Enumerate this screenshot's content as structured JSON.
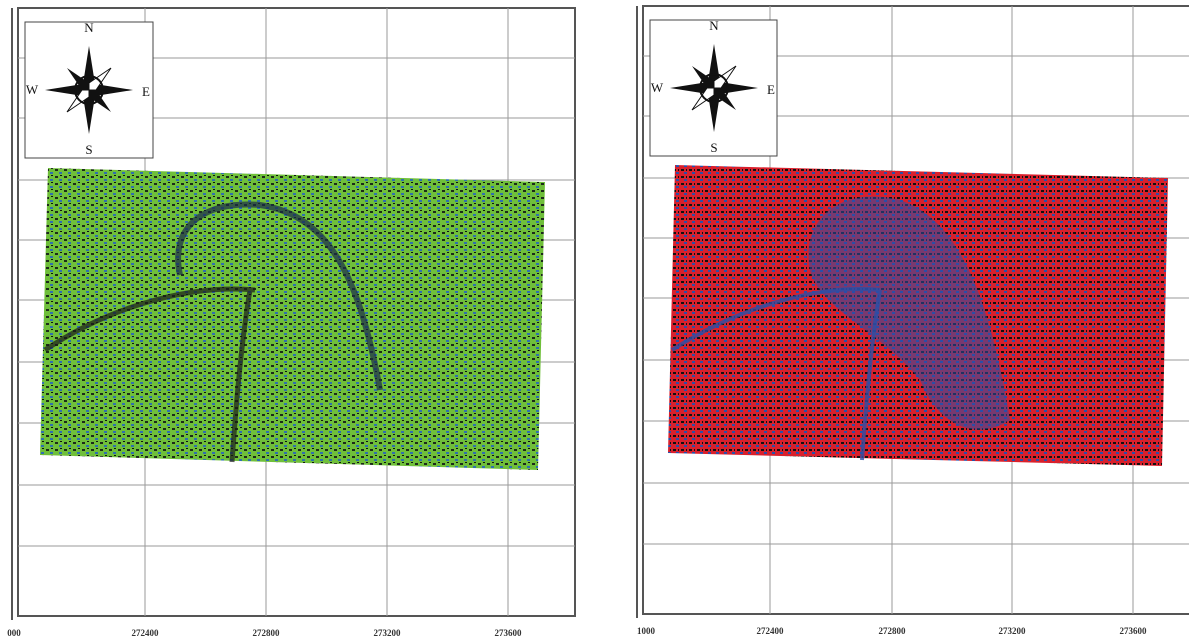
{
  "panels": [
    {
      "compass": {
        "n": "N",
        "s": "S",
        "e": "E",
        "w": "W"
      },
      "x_labels": [
        "000",
        "272400",
        "272800",
        "273200",
        "273600"
      ]
    },
    {
      "compass": {
        "n": "N",
        "s": "S",
        "e": "E",
        "w": "W"
      },
      "x_labels": [
        "1000",
        "272400",
        "272800",
        "273200",
        "273600"
      ]
    }
  ]
}
